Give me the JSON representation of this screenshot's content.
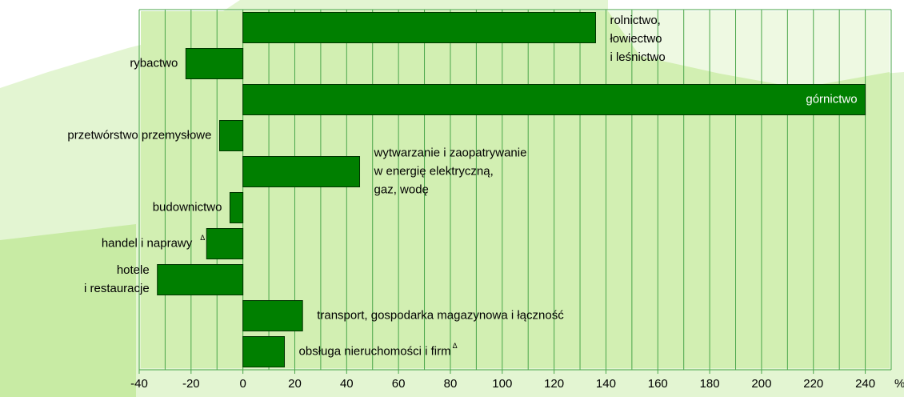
{
  "chart_data": {
    "type": "hbar",
    "categories": [
      [
        "rolnictwo,",
        "łowiectwo",
        "i leśnictwo"
      ],
      [
        "rybactwo"
      ],
      [
        "górnictwo"
      ],
      [
        "przetwórstwo przemysłowe"
      ],
      [
        "wytwarzanie i zaopatrywanie",
        "w energię elektryczną,",
        "gaz, wodę"
      ],
      [
        "budownictwo"
      ],
      [
        "handel i naprawy"
      ],
      [
        "hotele",
        "i restauracje"
      ],
      [
        "transport, gospodarka magazynowa i łączność"
      ],
      [
        "obsługa nieruchomości i firm"
      ]
    ],
    "category_notes": [
      null,
      null,
      null,
      null,
      null,
      null,
      "Δ",
      null,
      null,
      "Δ"
    ],
    "values": [
      136,
      -22,
      240,
      -9,
      45,
      -5,
      -14,
      -33,
      23,
      16
    ],
    "color": "#007f00",
    "xlim": [
      -40,
      250
    ],
    "xticks": [
      -40,
      -20,
      0,
      20,
      40,
      60,
      80,
      100,
      120,
      140,
      160,
      180,
      200,
      220,
      240
    ],
    "xgrid": [
      -40,
      -30,
      -20,
      -10,
      0,
      10,
      20,
      30,
      40,
      50,
      60,
      70,
      80,
      90,
      100,
      110,
      120,
      130,
      140,
      150,
      160,
      170,
      180,
      190,
      200,
      210,
      220,
      230,
      240,
      250
    ],
    "unit": "%",
    "grid": true
  }
}
